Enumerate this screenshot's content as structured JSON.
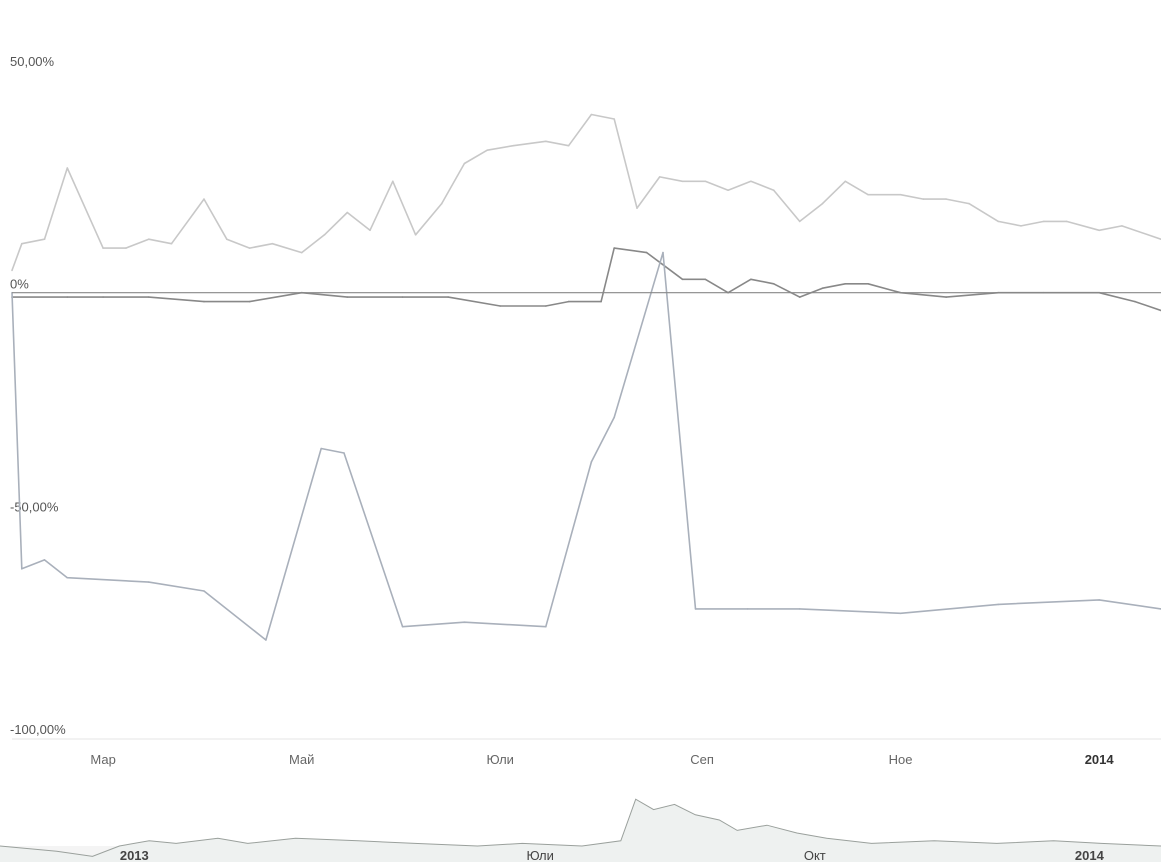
{
  "chart_data": {
    "type": "line",
    "title": "",
    "xlabel": "",
    "ylabel": "",
    "ylim": [
      -100,
      50
    ],
    "y_ticks": [
      {
        "value": 50,
        "label": "50,00%"
      },
      {
        "value": 0,
        "label": "0%"
      },
      {
        "value": -50,
        "label": "-50,00%"
      },
      {
        "value": -100,
        "label": "-100,00%"
      }
    ],
    "xlim": [
      "2013-02-01",
      "2014-01-20"
    ],
    "x_ticks": [
      {
        "date": "2013-03-01",
        "label": "Мар",
        "bold": false
      },
      {
        "date": "2013-05-01",
        "label": "Май",
        "bold": false
      },
      {
        "date": "2013-07-01",
        "label": "Юли",
        "bold": false
      },
      {
        "date": "2013-09-01",
        "label": "Сеп",
        "bold": false
      },
      {
        "date": "2013-11-01",
        "label": "Ное",
        "bold": false
      },
      {
        "date": "2014-01-01",
        "label": "2014",
        "bold": true
      }
    ],
    "zero_line": 0,
    "grid": false,
    "series": [
      {
        "color": "#c8c8c8",
        "points": [
          [
            "2013-02-01",
            5
          ],
          [
            "2013-02-04",
            11
          ],
          [
            "2013-02-11",
            12
          ],
          [
            "2013-02-18",
            28
          ],
          [
            "2013-03-01",
            10
          ],
          [
            "2013-03-08",
            10
          ],
          [
            "2013-03-15",
            12
          ],
          [
            "2013-03-22",
            11
          ],
          [
            "2013-04-01",
            21
          ],
          [
            "2013-04-08",
            12
          ],
          [
            "2013-04-15",
            10
          ],
          [
            "2013-04-22",
            11
          ],
          [
            "2013-05-01",
            9
          ],
          [
            "2013-05-08",
            13
          ],
          [
            "2013-05-15",
            18
          ],
          [
            "2013-05-22",
            14
          ],
          [
            "2013-05-29",
            25
          ],
          [
            "2013-06-05",
            13
          ],
          [
            "2013-06-13",
            20
          ],
          [
            "2013-06-20",
            29
          ],
          [
            "2013-06-27",
            32
          ],
          [
            "2013-07-05",
            33
          ],
          [
            "2013-07-15",
            34
          ],
          [
            "2013-07-22",
            33
          ],
          [
            "2013-07-29",
            40
          ],
          [
            "2013-08-05",
            39
          ],
          [
            "2013-08-12",
            19
          ],
          [
            "2013-08-19",
            26
          ],
          [
            "2013-08-26",
            25
          ],
          [
            "2013-09-02",
            25
          ],
          [
            "2013-09-09",
            23
          ],
          [
            "2013-09-16",
            25
          ],
          [
            "2013-09-23",
            23
          ],
          [
            "2013-10-01",
            16
          ],
          [
            "2013-10-08",
            20
          ],
          [
            "2013-10-15",
            25
          ],
          [
            "2013-10-22",
            22
          ],
          [
            "2013-11-01",
            22
          ],
          [
            "2013-11-08",
            21
          ],
          [
            "2013-11-15",
            21
          ],
          [
            "2013-11-22",
            20
          ],
          [
            "2013-12-01",
            16
          ],
          [
            "2013-12-08",
            15
          ],
          [
            "2013-12-15",
            16
          ],
          [
            "2013-12-22",
            16
          ],
          [
            "2014-01-01",
            14
          ],
          [
            "2014-01-08",
            15
          ],
          [
            "2014-01-20",
            12
          ]
        ]
      },
      {
        "color": "#888888",
        "points": [
          [
            "2013-02-01",
            -1
          ],
          [
            "2013-02-18",
            -1
          ],
          [
            "2013-03-01",
            -1
          ],
          [
            "2013-03-15",
            -1
          ],
          [
            "2013-04-01",
            -2
          ],
          [
            "2013-04-15",
            -2
          ],
          [
            "2013-05-01",
            0
          ],
          [
            "2013-05-15",
            -1
          ],
          [
            "2013-06-01",
            -1
          ],
          [
            "2013-06-15",
            -1
          ],
          [
            "2013-07-01",
            -3
          ],
          [
            "2013-07-15",
            -3
          ],
          [
            "2013-07-22",
            -2
          ],
          [
            "2013-08-01",
            -2
          ],
          [
            "2013-08-05",
            10
          ],
          [
            "2013-08-15",
            9
          ],
          [
            "2013-08-26",
            3
          ],
          [
            "2013-09-02",
            3
          ],
          [
            "2013-09-09",
            0
          ],
          [
            "2013-09-16",
            3
          ],
          [
            "2013-09-23",
            2
          ],
          [
            "2013-10-01",
            -1
          ],
          [
            "2013-10-08",
            1
          ],
          [
            "2013-10-15",
            2
          ],
          [
            "2013-10-22",
            2
          ],
          [
            "2013-11-01",
            0
          ],
          [
            "2013-11-15",
            -1
          ],
          [
            "2013-12-01",
            0
          ],
          [
            "2013-12-15",
            0
          ],
          [
            "2014-01-01",
            0
          ],
          [
            "2014-01-12",
            -2
          ],
          [
            "2014-01-20",
            -4
          ]
        ]
      },
      {
        "color": "#a9b0bb",
        "points": [
          [
            "2013-02-01",
            0
          ],
          [
            "2013-02-04",
            -62
          ],
          [
            "2013-02-11",
            -60
          ],
          [
            "2013-02-18",
            -64
          ],
          [
            "2013-03-15",
            -65
          ],
          [
            "2013-04-01",
            -67
          ],
          [
            "2013-04-20",
            -78
          ],
          [
            "2013-05-07",
            -35
          ],
          [
            "2013-05-14",
            -36
          ],
          [
            "2013-06-01",
            -75
          ],
          [
            "2013-06-20",
            -74
          ],
          [
            "2013-07-15",
            -75
          ],
          [
            "2013-07-29",
            -38
          ],
          [
            "2013-08-05",
            -28
          ],
          [
            "2013-08-20",
            9
          ],
          [
            "2013-08-30",
            -71
          ],
          [
            "2013-09-15",
            -71
          ],
          [
            "2013-10-01",
            -71
          ],
          [
            "2013-11-01",
            -72
          ],
          [
            "2013-12-01",
            -70
          ],
          [
            "2014-01-01",
            -69
          ],
          [
            "2014-01-20",
            -71
          ]
        ]
      }
    ],
    "navigator": {
      "labels": [
        {
          "date": "2013-02-15",
          "label": "2013"
        },
        {
          "date": "2013-07-01",
          "label": "Юли"
        },
        {
          "date": "2013-10-01",
          "label": "Окт"
        },
        {
          "date": "2014-01-01",
          "label": "2014"
        }
      ],
      "values": [
        [
          "2013-01-01",
          0
        ],
        [
          "2013-01-20",
          -2
        ],
        [
          "2013-02-01",
          -4
        ],
        [
          "2013-02-10",
          0
        ],
        [
          "2013-02-20",
          2
        ],
        [
          "2013-03-01",
          1
        ],
        [
          "2013-03-15",
          3
        ],
        [
          "2013-03-25",
          1
        ],
        [
          "2013-04-10",
          3
        ],
        [
          "2013-05-01",
          2
        ],
        [
          "2013-05-20",
          1
        ],
        [
          "2013-06-10",
          0
        ],
        [
          "2013-06-25",
          1
        ],
        [
          "2013-07-15",
          0
        ],
        [
          "2013-07-28",
          2
        ],
        [
          "2013-08-02",
          18
        ],
        [
          "2013-08-08",
          14
        ],
        [
          "2013-08-15",
          16
        ],
        [
          "2013-08-22",
          12
        ],
        [
          "2013-08-30",
          10
        ],
        [
          "2013-09-05",
          6
        ],
        [
          "2013-09-15",
          8
        ],
        [
          "2013-09-25",
          5
        ],
        [
          "2013-10-05",
          3
        ],
        [
          "2013-10-20",
          1
        ],
        [
          "2013-11-10",
          2
        ],
        [
          "2013-12-01",
          1
        ],
        [
          "2013-12-20",
          2
        ],
        [
          "2014-01-05",
          1
        ],
        [
          "2014-01-25",
          0
        ]
      ]
    }
  }
}
